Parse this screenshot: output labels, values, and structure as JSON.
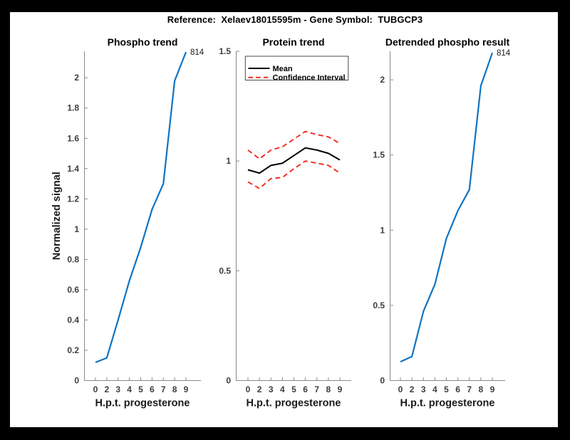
{
  "figure": {
    "title": "Reference:  Xelaev18015595m - Gene Symbol:  TUBGCP3"
  },
  "colors": {
    "blue": "#0d74c4",
    "red": "#f32a1d",
    "black": "#000000",
    "axis": "#8a8a8a",
    "tick_text": "#3d3d3d"
  },
  "chart_data": [
    {
      "type": "line",
      "title": "Phospho trend",
      "xlabel": "H.p.t. progesterone",
      "ylabel": "Normalized signal",
      "categories": [
        "0",
        "2",
        "3",
        "4",
        "5",
        "6",
        "7",
        "8",
        "9"
      ],
      "ylim": [
        0,
        2.175
      ],
      "ytick_values": [
        0,
        0.2,
        0.4,
        0.6,
        0.8,
        1,
        1.2,
        1.4,
        1.6,
        1.8,
        2
      ],
      "ytick_labels": [
        "0",
        "0.2",
        "0.4",
        "0.6",
        "0.8",
        "1",
        "1.2",
        "1.4",
        "1.6",
        "1.8",
        "2"
      ],
      "series": [
        {
          "name": "phospho-signal",
          "color": "blue",
          "style": "solid",
          "values": [
            0.12,
            0.15,
            0.4,
            0.66,
            0.88,
            1.13,
            1.3,
            1.98,
            2.17
          ]
        }
      ],
      "annotation": {
        "text": "814"
      },
      "legend": null
    },
    {
      "type": "line",
      "title": "Protein trend",
      "xlabel": "H.p.t. progesterone",
      "ylabel": null,
      "categories": [
        "0",
        "2",
        "3",
        "4",
        "5",
        "6",
        "7",
        "8",
        "9"
      ],
      "ylim": [
        0,
        1.5
      ],
      "ytick_values": [
        0,
        0.5,
        1,
        1.5
      ],
      "ytick_labels": [
        "0",
        "0.5",
        "1",
        "1.5"
      ],
      "series": [
        {
          "name": "mean",
          "color": "black",
          "style": "solid",
          "values": [
            0.96,
            0.945,
            0.98,
            0.99,
            1.025,
            1.06,
            1.05,
            1.035,
            1.005
          ]
        },
        {
          "name": "ci-upper",
          "color": "red",
          "style": "dashed",
          "values": [
            1.05,
            1.01,
            1.05,
            1.065,
            1.1,
            1.135,
            1.12,
            1.11,
            1.08
          ]
        },
        {
          "name": "ci-lower",
          "color": "red",
          "style": "dashed",
          "values": [
            0.905,
            0.875,
            0.92,
            0.925,
            0.965,
            1.0,
            0.99,
            0.98,
            0.945
          ]
        }
      ],
      "annotation": null,
      "legend": {
        "entries": [
          {
            "label": "Mean",
            "color": "black",
            "style": "solid"
          },
          {
            "label": "Confidence Interval",
            "color": "red",
            "style": "dashed"
          }
        ]
      }
    },
    {
      "type": "line",
      "title": "Detrended phospho result",
      "xlabel": "H.p.t. progesterone",
      "ylabel": null,
      "categories": [
        "0",
        "2",
        "3",
        "4",
        "5",
        "6",
        "7",
        "8",
        "9"
      ],
      "ylim": [
        0,
        2.19
      ],
      "ytick_values": [
        0,
        0.5,
        1,
        1.5,
        2
      ],
      "ytick_labels": [
        "0",
        "0.5",
        "1",
        "1.5",
        "2"
      ],
      "series": [
        {
          "name": "detrended-phospho-signal",
          "color": "blue",
          "style": "solid",
          "values": [
            0.125,
            0.16,
            0.46,
            0.64,
            0.945,
            1.13,
            1.27,
            1.96,
            2.18
          ]
        }
      ],
      "annotation": {
        "text": "814"
      },
      "legend": null
    }
  ]
}
